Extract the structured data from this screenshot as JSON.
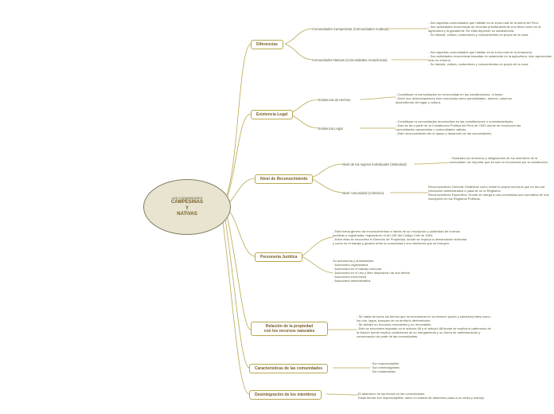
{
  "colors": {
    "background": "#ffffff",
    "node_fill": "#e8e4d0",
    "node_border": "#808060",
    "branch_border": "#b8a850",
    "branch_text": "#7a6028",
    "text": "#5a5a3a",
    "line": "#b8a850"
  },
  "root": {
    "subtitle": "LAS COMUNIDADES",
    "line1": "CAMPESINAS",
    "line2": "Y",
    "line3": "NATIVAS"
  },
  "branches": {
    "diferencias": {
      "label": "Diferencias",
      "sub1": "Comunidades Campesinas (Comunidades Andinas)",
      "sub2": "Comunidades Nativas (Comunidades Amazónicas)",
      "leaf1": "- Son aquellas comunidades que habitan en la zona rural de la sierra del Perú.\n- Sus actividades económicas se vinculan prioritariamente a la tierra como es la agricultura y la ganadería. De ellas depende su subsistencia.\n- Su historia, cultura, costumbres y conocimientos es propio de la zona.",
      "leaf2": "- Son aquellas comunidades que habitan en la zona rural de la Amazonía.\n- Sus actividades económicas basadas no solamente en la agricultura, sino aprovechan todo su entorno.\n- Su historia, cultura, costumbres y conocimientos es propio de la zona."
    },
    "existencia": {
      "label": "Existencia Legal",
      "sub1": "Existencia de Hechos",
      "sub2": "Existencia Legal",
      "leaf1": "- Constituyen a comunidades no reconocidas en las constituciones, ni leyes.\n- Entre sus denominaciones eran conocidas como parcialidades, anexos, caseríos dependiendo del lugar y cultura.",
      "leaf2": "- Constituyen a comunidades reconocidas en las constituciones o normativas/leyes.\n- Esto se da a partir de la Constitución Política del Perú de 1920 donde se reconocen las comunidades campesinas o comunidades nativas.\n- Este reconocimiento dio el apoyo y desarrollo de las comunidades."
    },
    "reconocimiento": {
      "label": "Nivel de Reconocimiento",
      "sub1": "Nivel de los sujetos individuales (Individual)",
      "sub2": "Nivel comunidad (Colectivo)",
      "leaf1": "- Garantiza los derechos y obligaciones de los miembros de la comunidad, sin importar que se sea no reconocida por la constitución.",
      "leaf2": "Reconocimiento General: Establece como existe la propia norma la que no da una resolución administrativa o pasa de un la Registros.\nReconocimiento Específico: Donde se otorga a una comunidad una normativa de una inscripción en los Registros Públicos."
    },
    "personeria": {
      "label": "Personería Jurídica",
      "leaf1": "- Esta forma género da reconocimientos a través de su inscripción y publicidad de normas jurídicas o registradas, regulada en el Art.135 del Código Civil de 1984.\n- Entre ellas se encuentra el Derecho de Propiedad, donde se explica la demarcación territorial y como es el trabajo y gestión entre la comunidad y sus miembros que se incluyen.",
      "leaf2": "Su autonomía y autónidades:\n· Autonomía organizativa\n· Autonomía en el trabajo comunal\n· Autonomía en el uso y libre disposición de sus tierras\n· Autonomía económica\n· Autonomía administrativa"
    },
    "relacion": {
      "label": "Relación de la propiedad\ncon los recursos naturales",
      "leaf": "- Se habla de todos los bienes que se encuentran en su entorno (suelo y subsuelo) tales como: los ríos, lagos, bosques de su territorio determinado.\n- Se dividen en recursos renovables y no renovables.\n- Esto se encuentra regulado en el artículo 66 y el artículo 88 donde se explica el patrimonio de la Nación donde explica condiciones de su otorgamiento y su forma de administración y conservación de parte de las comunidades."
    },
    "caracteristicas": {
      "label": "Características de las comunidades",
      "leaf": "· Son imprescriptible\n· Son inembargables\n· Son inalienables"
    },
    "desintegracion": {
      "label": "Desintegración de los miembros",
      "leaf": "El abandono de las tierras en las comunidades.\nEstas tierras son imprescriptible, salvo en estado de abandono pasa a su venta y manejo."
    }
  }
}
